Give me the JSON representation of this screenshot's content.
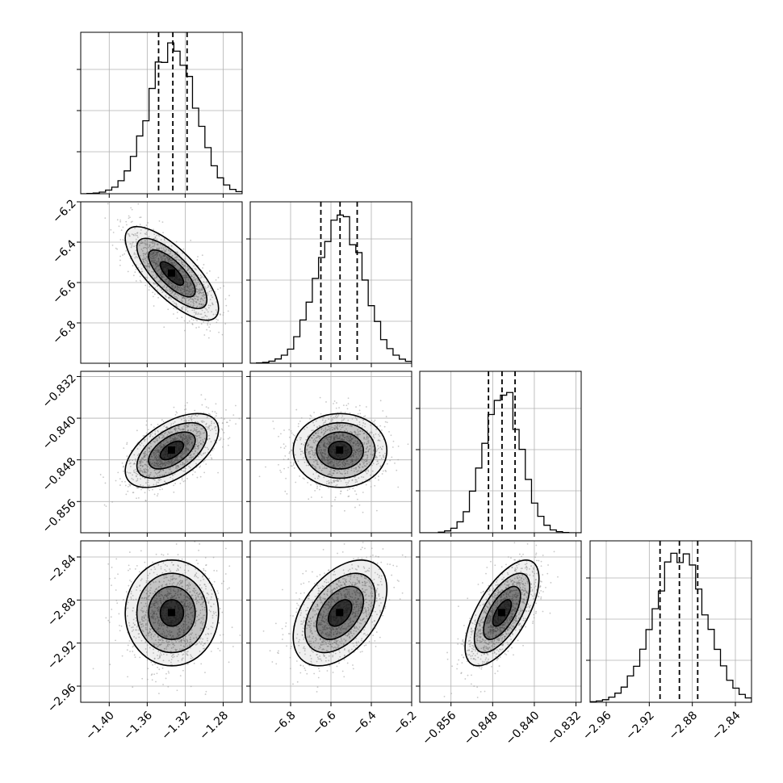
{
  "chart_data": {
    "type": "scatter",
    "grid": true,
    "parameters": 4,
    "axis_ranges": [
      [
        -1.43,
        -1.26
      ],
      [
        -7.0,
        -6.2
      ],
      [
        -0.862,
        -0.831
      ],
      [
        -2.975,
        -2.825
      ]
    ],
    "x_ticks": [
      [
        "−1.40",
        "−1.36",
        "−1.32",
        "−1.28"
      ],
      [
        "−6.8",
        "−6.6",
        "−6.4",
        "−6.2"
      ],
      [
        "−0.856",
        "−0.848",
        "−0.840",
        "−0.832"
      ],
      [
        "−2.96",
        "−2.92",
        "−2.88",
        "−2.84"
      ]
    ],
    "x_tick_values": [
      [
        -1.4,
        -1.36,
        -1.32,
        -1.28
      ],
      [
        -6.8,
        -6.6,
        -6.4,
        -6.2
      ],
      [
        -0.856,
        -0.848,
        -0.84,
        -0.832
      ],
      [
        -2.96,
        -2.92,
        -2.88,
        -2.84
      ]
    ],
    "y_ticks": [
      [],
      [
        "−6.2",
        "−6.4",
        "−6.6",
        "−6.8"
      ],
      [
        "−0.832",
        "−0.840",
        "−0.848",
        "−0.856"
      ],
      [
        "−2.84",
        "−2.88",
        "−2.92",
        "−2.96"
      ]
    ],
    "y_tick_values": [
      [],
      [
        -6.2,
        -6.4,
        -6.6,
        -6.8
      ],
      [
        -0.832,
        -0.84,
        -0.848,
        -0.856
      ],
      [
        -2.84,
        -2.88,
        -2.92,
        -2.96
      ]
    ],
    "marginals": [
      {
        "mean": -1.334,
        "std": 0.018,
        "quantiles": [
          -1.348,
          -1.333,
          -1.318
        ]
      },
      {
        "mean": -6.555,
        "std": 0.085,
        "quantiles": [
          -6.65,
          -6.555,
          -6.47
        ]
      },
      {
        "mean": -0.8462,
        "std": 0.0026,
        "quantiles": [
          -0.8488,
          -0.8462,
          -0.8437
        ]
      },
      {
        "mean": -2.892,
        "std": 0.018,
        "quantiles": [
          -2.91,
          -2.892,
          -2.875
        ]
      }
    ],
    "correlations": [
      [
        1,
        -0.75,
        0.55,
        0.0
      ],
      [
        -0.75,
        1,
        0.0,
        0.45
      ],
      [
        0.55,
        0.0,
        1,
        0.65
      ],
      [
        0.0,
        0.45,
        0.65,
        1
      ]
    ],
    "contour_levels_sigma": [
      0.5,
      1.0,
      1.5,
      2.0
    ],
    "colors": {
      "points": "#9a9a9a",
      "lines": "#000000",
      "grid": "#b0b0b0"
    }
  }
}
